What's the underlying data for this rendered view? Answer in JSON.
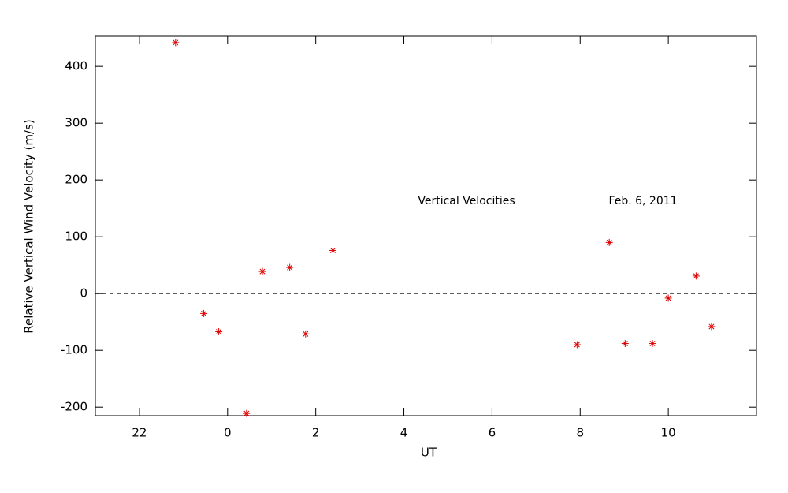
{
  "chart_data": {
    "type": "scatter",
    "xlabel": "UT",
    "ylabel": "Relative Vertical Wind Velocity (m/s)",
    "annotations": [
      "Vertical Velocities",
      "Feb. 6, 2011"
    ],
    "xlim": [
      -3,
      12
    ],
    "ylim": [
      -215,
      453
    ],
    "xticks": [
      {
        "value": -2,
        "label": "22"
      },
      0,
      2,
      4,
      6,
      8,
      10
    ],
    "yticks": [
      -200,
      -100,
      0,
      100,
      200,
      300,
      400
    ],
    "reference_line": {
      "y": 0,
      "style": "dashed"
    },
    "marker": "asterisk",
    "series": [
      {
        "color": "#e00000",
        "x": [
          -1.18,
          -0.54,
          -0.2,
          0.43,
          0.79,
          1.41,
          1.77,
          2.39,
          7.93,
          8.66,
          9.02,
          9.64,
          10.0,
          10.63,
          10.98
        ],
        "values": [
          442,
          -35,
          -67,
          -211,
          39,
          46,
          -71,
          76,
          -90,
          90,
          -88,
          -88,
          -8,
          31,
          -58
        ]
      }
    ]
  }
}
